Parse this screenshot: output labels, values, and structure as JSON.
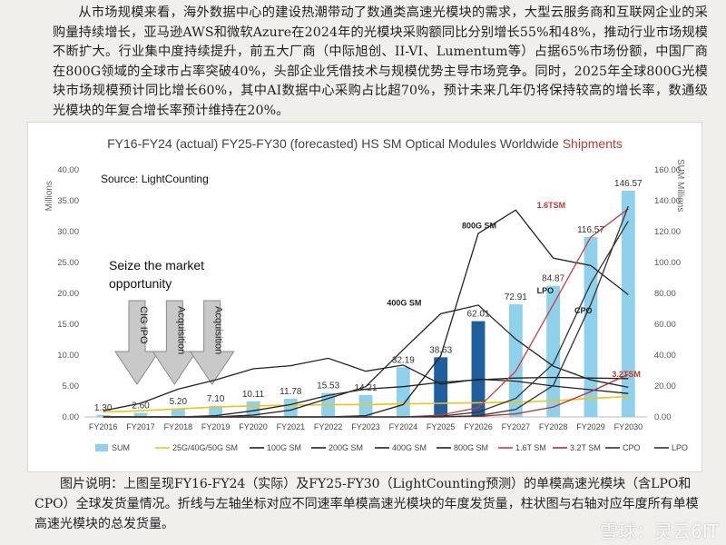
{
  "article": {
    "paragraph": "从市场规模来看，海外数据中心的建设热潮带动了数通类高速光模块的需求，大型云服务商和互联网企业的采购量持续增长，亚马逊AWS和微软Azure在2024年的光模块采购额同比分别增长55%和48%，推动行业市场规模不断扩大。行业集中度持续提升，前五大厂商（中际旭创、II-VI、Lumentum等）占据65%市场份额，中国厂商在800G领域的全球市占率突破40%，头部企业凭借技术与规模优势主导市场竞争。同时，2025年全球800G光模块市场规模预计同比增长60%，其中AI数据中心采购占比超70%，预计未来几年仍将保持较高的增长率，数通级光模块的年复合增长率预计维持在20%。",
    "caption": "图片说明：上图呈现FY16-FY24（实际）及FY25-FY30（LightCounting预测）的单模高速光模块（含LPO和CPO）全球发货量情况。折线与左轴坐标对应不同速率单模高速光模块的年度发货量，柱状图与右轴对应年度所有单模高速光模块的总发货量。",
    "watermark": "雪球：灵云6IT"
  },
  "chart_data": {
    "type": "bar",
    "title_main": "FY16-FY24 (actual) FY25-FY30 (forecasted) HS SM Optical Modules Worldwide ",
    "title_accent": "Shipments",
    "source": "Source: LightCounting",
    "ylabel_left": "Millions",
    "ylabel_right": "SUM Millions",
    "ylim_left": [
      0,
      40
    ],
    "ylim_right": [
      0,
      160
    ],
    "yticks_left": [
      "0.00",
      "5.00",
      "10.00",
      "15.00",
      "20.00",
      "25.00",
      "30.00",
      "35.00",
      "40.00"
    ],
    "yticks_right": [
      "0.00",
      "20.00",
      "40.00",
      "60.00",
      "80.00",
      "100.00",
      "120.00",
      "140.00",
      "160.00"
    ],
    "categories": [
      "FY2016",
      "FY2017",
      "FY2018",
      "FY2019",
      "FY2020",
      "FY2021",
      "FY2022",
      "FY2023",
      "FY2024",
      "FY2025",
      "FY2026",
      "FY2027",
      "FY2028",
      "FY2029",
      "FY2030"
    ],
    "sum_values": [
      1.3,
      2.6,
      5.2,
      7.1,
      10.11,
      11.78,
      15.53,
      14.21,
      32.19,
      38.63,
      62.01,
      72.91,
      84.87,
      116.57,
      146.57
    ],
    "sum_labels": [
      "1.30",
      "2.60",
      "5.20",
      "7.10",
      "10.11",
      "11.78",
      "15.53",
      "14.21",
      "32.19",
      "38.63",
      "62.01",
      "72.91",
      "84.87",
      "116.57",
      "146.57"
    ],
    "highlight_years": [
      "FY2025",
      "FY2026"
    ],
    "colors": {
      "bar": "#8fd1ea",
      "bar_dark": "#1f5f9e",
      "title": "#444444",
      "accent": "#c0392b",
      "25G": "#f0c419",
      "100G": "#222222",
      "200G": "#222222",
      "400G": "#222222",
      "800G": "#222222",
      "1.6T": "#d03a3a",
      "3.2T": "#b03030",
      "CPO": "#333333",
      "LPO": "#333333",
      "arrow": "#c9c9c9"
    },
    "series": [
      {
        "name": "25G/40G/50G SM",
        "key": "25G",
        "values": [
          0.8,
          1.0,
          1.3,
          1.6,
          1.8,
          1.9,
          2.0,
          2.0,
          2.1,
          2.2,
          2.3,
          2.4,
          2.6,
          3.0,
          3.3
        ]
      },
      {
        "name": "100G SM",
        "key": "100G",
        "values": [
          1.0,
          2.2,
          4.5,
          6.0,
          7.8,
          8.3,
          9.5,
          7.4,
          8.4,
          5.3,
          6.1,
          5.8,
          5.0,
          4.4,
          3.8
        ]
      },
      {
        "name": "200G SM",
        "key": "200G",
        "values": [
          0,
          0,
          0,
          0.2,
          1.0,
          2.0,
          3.5,
          4.5,
          4.9,
          5.6,
          6.0,
          6.3,
          6.4,
          6.3,
          6.2
        ]
      },
      {
        "name": "400G SM",
        "key": "400G",
        "values": [
          0,
          0,
          0,
          0,
          0.3,
          1.1,
          3.0,
          4.9,
          10.9,
          16.7,
          18.1,
          12.6,
          8.2,
          6.0,
          4.8
        ]
      },
      {
        "name": "800G SM",
        "key": "800G",
        "values": [
          0,
          0,
          0,
          0,
          0,
          0,
          0,
          0.2,
          2.0,
          9.9,
          29.7,
          33.5,
          25.7,
          24.5,
          19.8
        ]
      },
      {
        "name": "1.6T SM",
        "key": "1.6T",
        "values": [
          0,
          0,
          0,
          0,
          0,
          0,
          0,
          0,
          0,
          0.3,
          1.5,
          7.4,
          18.2,
          29.1,
          33.7
        ]
      },
      {
        "name": "3.2T SM",
        "key": "3.2T",
        "values": [
          0,
          0,
          0,
          0,
          0,
          0,
          0,
          0,
          0,
          0,
          0.1,
          0.5,
          1.6,
          4.1,
          6.9
        ]
      },
      {
        "name": "CPO",
        "key": "CPO",
        "values": [
          0,
          0,
          0,
          0,
          0,
          0,
          0,
          0,
          0,
          0,
          0.2,
          1.2,
          5.1,
          18.2,
          34.1
        ]
      },
      {
        "name": "LPO",
        "key": "LPO",
        "values": [
          0,
          0,
          0,
          0,
          0,
          0,
          0,
          0,
          0,
          0.1,
          0.8,
          3.0,
          8.6,
          21.6,
          31.7
        ]
      }
    ],
    "legend": [
      {
        "label": "SUM",
        "key": "bar",
        "kind": "bar"
      },
      {
        "label": "25G/40G/50G SM",
        "key": "25G",
        "kind": "line"
      },
      {
        "label": "100G SM",
        "key": "100G",
        "kind": "line"
      },
      {
        "label": "200G SM",
        "key": "200G",
        "kind": "line"
      },
      {
        "label": "400G SM",
        "key": "400G",
        "kind": "line"
      },
      {
        "label": "800G SM",
        "key": "800G",
        "kind": "line"
      },
      {
        "label": "1.6T SM",
        "key": "1.6T",
        "kind": "line"
      },
      {
        "label": "3.2T SM",
        "key": "3.2T",
        "kind": "line"
      },
      {
        "label": "CPO",
        "key": "CPO",
        "kind": "line"
      },
      {
        "label": "LPO",
        "key": "LPO",
        "kind": "line"
      }
    ],
    "series_labels": [
      {
        "text": "800G SM",
        "key": "800G",
        "year": "FY2026",
        "value": 30.5,
        "color": "#222222"
      },
      {
        "text": "400G SM",
        "key": "400G",
        "year": "FY2024",
        "value": 18.0,
        "color": "#222222"
      },
      {
        "text": "1.6TSM",
        "key": "1.6T",
        "year": "FY2028",
        "value": 33.8,
        "color": "#c0392b"
      },
      {
        "text": "LPO",
        "key": "LPO",
        "year": "FY2028",
        "value": 20.0,
        "color": "#222222"
      },
      {
        "text": "CPO",
        "key": "CPO",
        "year": "FY2029",
        "value": 16.8,
        "color": "#222222"
      },
      {
        "text": "3.2TSM",
        "key": "3.2T",
        "year": "FY2030",
        "value": 6.5,
        "color": "#c0392b"
      }
    ],
    "annotation": {
      "text": [
        "Seize the market",
        "opportunity"
      ],
      "year": "FY2017",
      "value": 23.8
    },
    "arrows": [
      {
        "label": "CIG IPO",
        "year": "FY2017"
      },
      {
        "label": "Acquisition",
        "year": "FY2018"
      },
      {
        "label": "Acquisition",
        "year": "FY2019"
      }
    ]
  }
}
